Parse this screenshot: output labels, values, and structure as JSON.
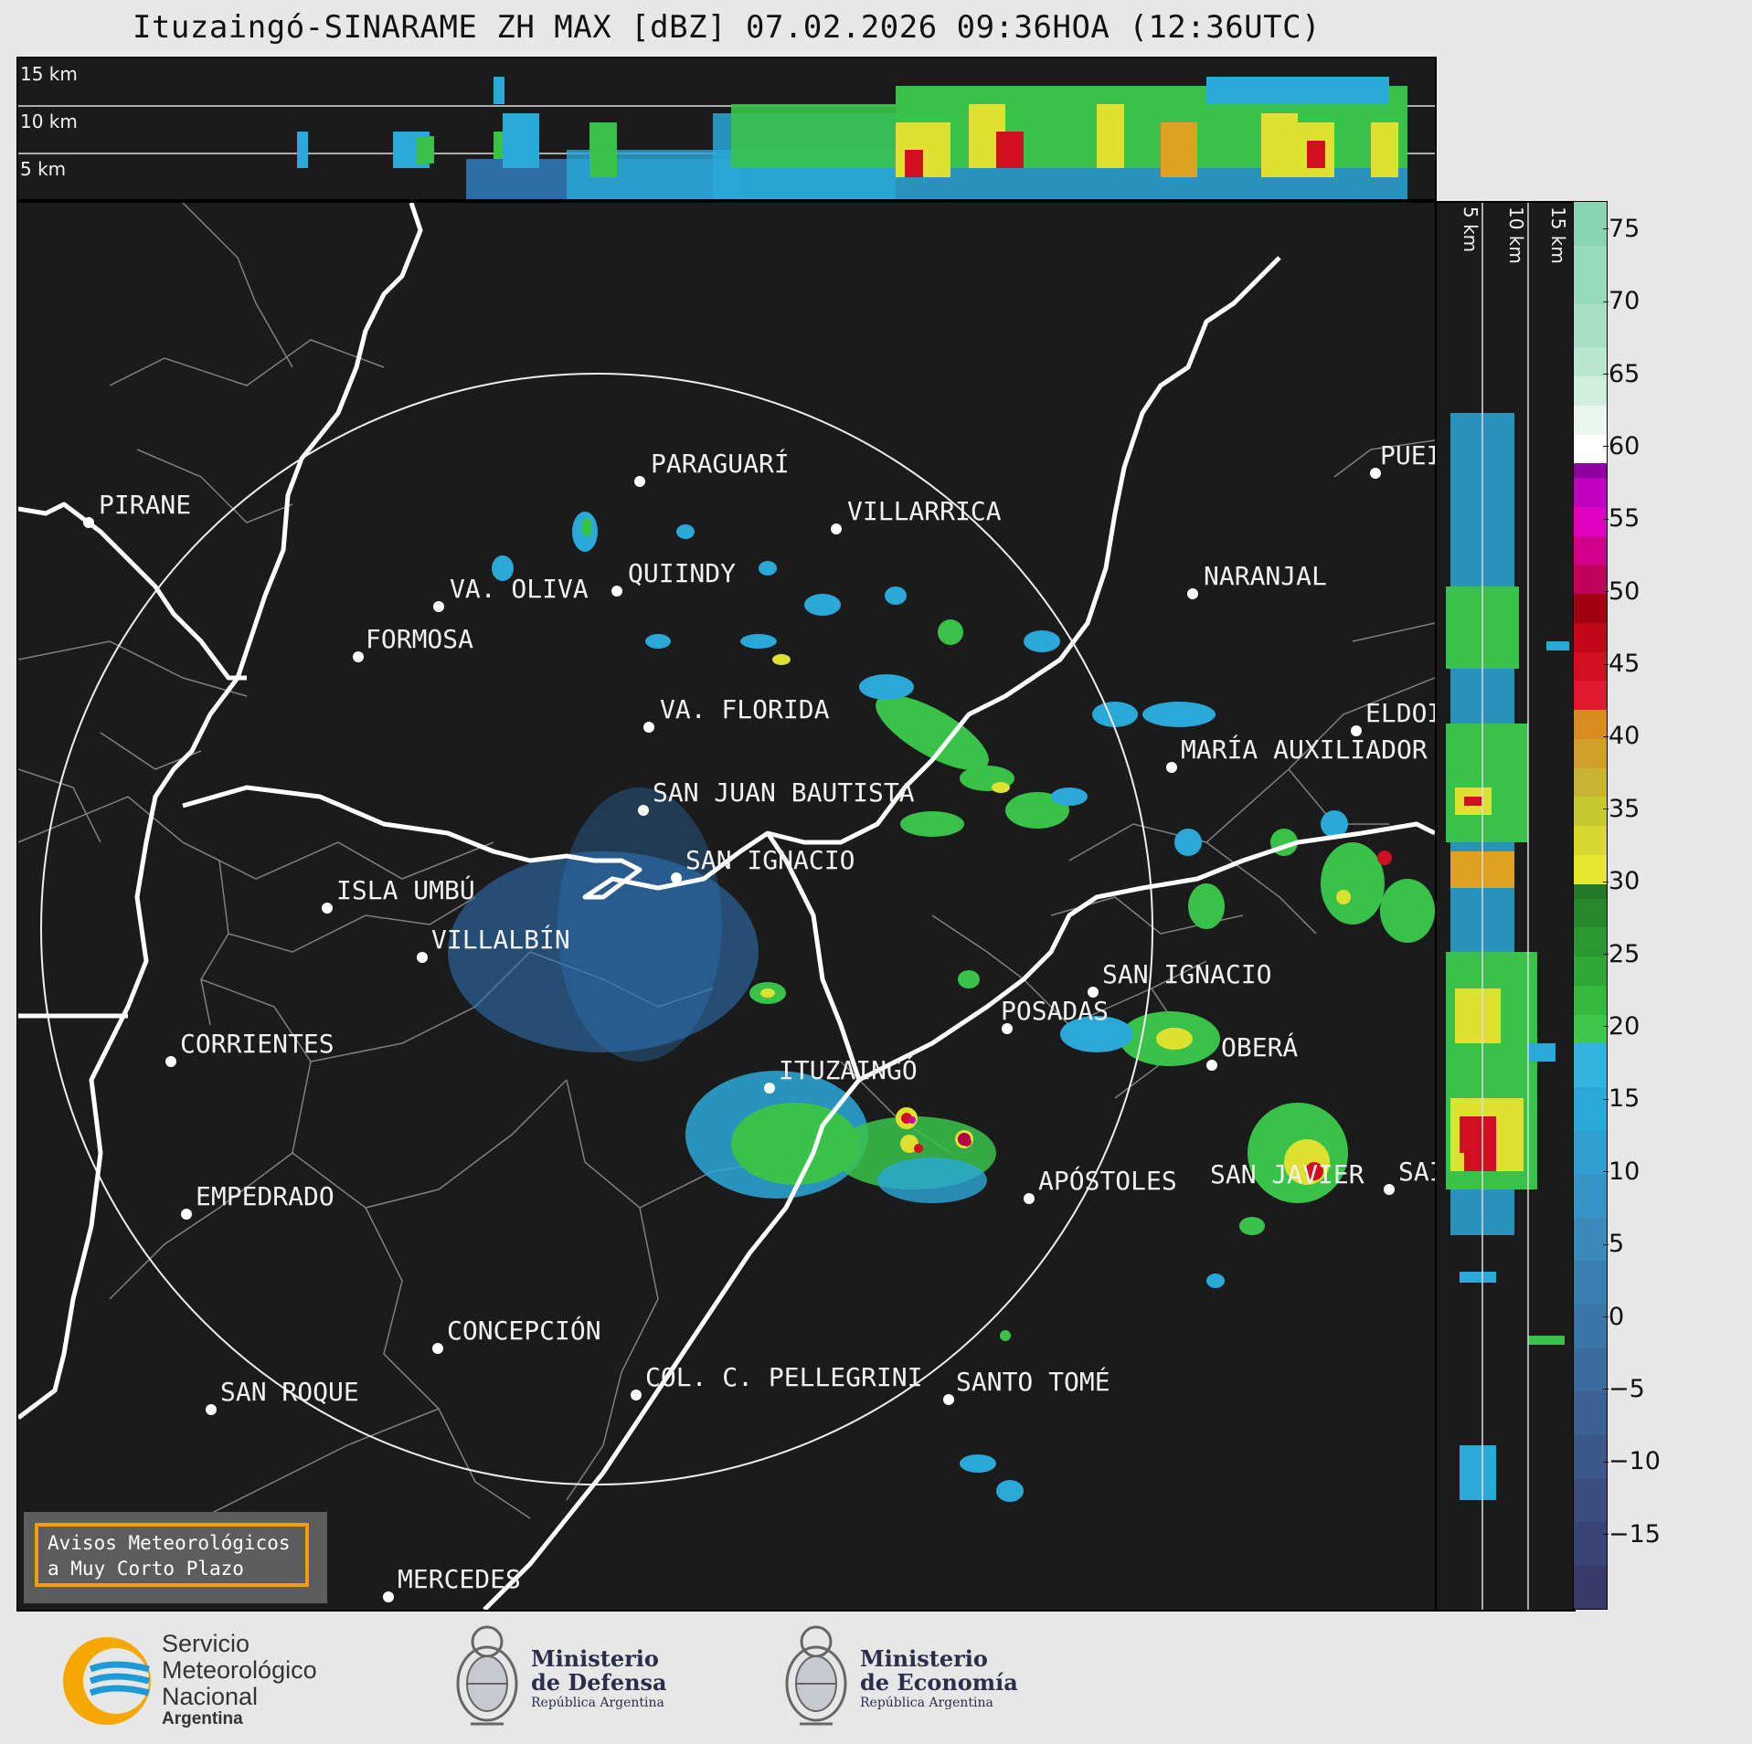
{
  "title": "Ituzaingó-SINARAME ZH MAX [dBZ] 07.02.2026 09:36HOA (12:36UTC)",
  "height_labels": [
    "15 km",
    "10 km",
    "5 km"
  ],
  "side_labels": [
    "5 km",
    "10 km",
    "15 km"
  ],
  "cities": [
    {
      "name": "PIRANE"
    },
    {
      "name": "PARAGUARÍ"
    },
    {
      "name": "VILLARRICA"
    },
    {
      "name": "QUIINDY"
    },
    {
      "name": "VA. OLIVA"
    },
    {
      "name": "NARANJAL"
    },
    {
      "name": "FORMOSA"
    },
    {
      "name": "PUEI"
    },
    {
      "name": "VA. FLORIDA"
    },
    {
      "name": "ELDOI"
    },
    {
      "name": "MARÍA AUXILIADOR"
    },
    {
      "name": "SAN JUAN BAUTISTA"
    },
    {
      "name": "SAN IGNACIO"
    },
    {
      "name": "ISLA UMBÚ"
    },
    {
      "name": "VILLALBÍN"
    },
    {
      "name": "SAN IGNACIO"
    },
    {
      "name": "POSADAS"
    },
    {
      "name": "CORRIENTES"
    },
    {
      "name": "ITUZAINGÓ"
    },
    {
      "name": "OBERÁ"
    },
    {
      "name": "APÓSTOLES"
    },
    {
      "name": "SAN JAVIER"
    },
    {
      "name": "SAI"
    },
    {
      "name": "EMPEDRADO"
    },
    {
      "name": "CONCEPCIÓN"
    },
    {
      "name": "COL. C. PELLEGRINI"
    },
    {
      "name": "SANTO TOMÉ"
    },
    {
      "name": "SAN ROQUE"
    },
    {
      "name": "MERCEDES"
    }
  ],
  "colorbar": {
    "ticks": [
      "75",
      "70",
      "65",
      "60",
      "55",
      "50",
      "45",
      "40",
      "35",
      "30",
      "25",
      "20",
      "15",
      "10",
      "5",
      "0",
      "−5",
      "−10",
      "−15"
    ],
    "min": -20,
    "max": 77
  },
  "warning": {
    "line1": "Avisos Meteorológicos",
    "line2": "a Muy Corto Plazo"
  },
  "logos": {
    "smn": {
      "line1": "Servicio",
      "line2": "Meteorológico",
      "line3": "Nacional",
      "line4": "Argentina"
    },
    "defensa": {
      "line1": "Ministerio",
      "line2": "de Defensa",
      "line3": "República Argentina"
    },
    "economia": {
      "line1": "Ministerio",
      "line2": "de Economía",
      "line3": "República Argentina"
    }
  },
  "colors": {
    "accent_warning": "#f0a000",
    "smn_blue": "#1e9ad6",
    "smn_yellow": "#f5a800"
  }
}
